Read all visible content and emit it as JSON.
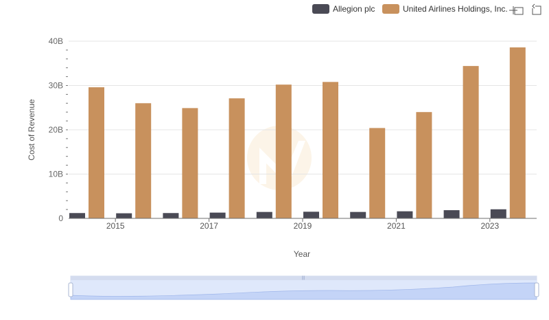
{
  "chart_data": {
    "type": "bar",
    "xlabel": "Year",
    "ylabel": "Cost of Revenue",
    "ylim": [
      0,
      40000000000
    ],
    "y_ticks": [
      {
        "value": 0,
        "label": "0"
      },
      {
        "value": 10000000000,
        "label": "10B"
      },
      {
        "value": 20000000000,
        "label": "20B"
      },
      {
        "value": 30000000000,
        "label": "30B"
      },
      {
        "value": 40000000000,
        "label": "40B"
      }
    ],
    "categories": [
      "2014",
      "2015",
      "2016",
      "2017",
      "2018",
      "2019",
      "2020",
      "2021",
      "2022",
      "2023"
    ],
    "x_tick_labels": [
      "2015",
      "2017",
      "2019",
      "2021",
      "2023"
    ],
    "series": [
      {
        "name": "Allegion plc",
        "color": "#4a4a55",
        "values": [
          1200000000,
          1150000000,
          1200000000,
          1300000000,
          1450000000,
          1500000000,
          1450000000,
          1600000000,
          1850000000,
          2050000000
        ]
      },
      {
        "name": "United Airlines Holdings, Inc.",
        "color": "#c8915d",
        "values": [
          29600000000,
          26000000000,
          24900000000,
          27100000000,
          30200000000,
          30800000000,
          20400000000,
          24000000000,
          34400000000,
          38600000000
        ]
      }
    ],
    "grid": true,
    "legend_position": "top-right",
    "has_zoom_slider": true
  },
  "toolbar": {
    "zoom_icon": "zoom-icon",
    "restore_icon": "restore-icon"
  }
}
